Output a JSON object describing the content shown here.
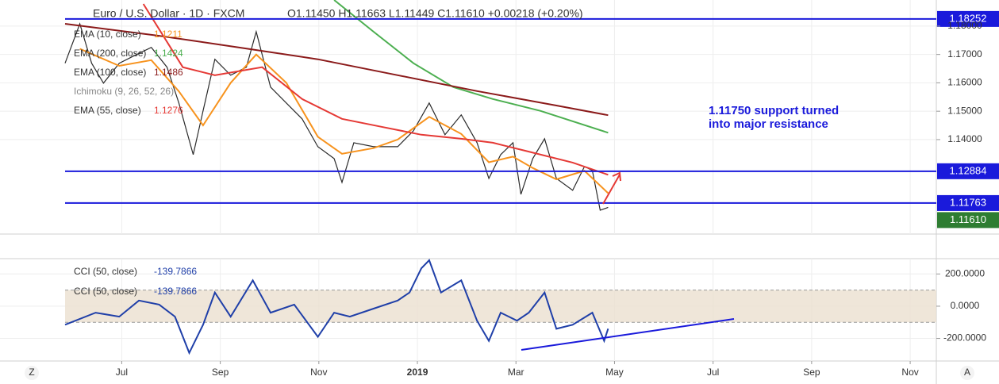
{
  "chart_data": [
    {
      "type": "line",
      "title": "Euro / U.S. Dollar · 1D · FXCM",
      "ohlc": "O1.11450  H1.11663  L1.11449  C1.11610  +0.00218 (+0.20%)",
      "xlim": [
        -1.47,
        17.53
      ],
      "ylim": [
        1.1067,
        1.1892
      ],
      "yticks": [
        {
          "value": 1.14,
          "label": "1.14000"
        },
        {
          "value": 1.15,
          "label": "1.15000"
        },
        {
          "value": 1.16,
          "label": "1.16000"
        },
        {
          "value": 1.17,
          "label": "1.17000"
        },
        {
          "value": 1.18,
          "label": "1.18000"
        }
      ],
      "grid": true,
      "series": [
        {
          "color": "#2b2b2b",
          "x": [
            -0.15,
            0.15,
            0.39,
            0.63,
            0.95,
            1.27,
            1.6,
            1.92,
            2.16,
            2.45,
            2.65,
            2.89,
            3.21,
            3.53,
            3.73,
            4.02,
            4.34,
            4.66,
            4.98,
            5.31,
            5.47,
            5.71,
            6.11,
            6.6,
            6.92,
            7.24,
            7.56,
            7.89,
            8.21,
            8.45,
            8.69,
            8.94,
            9.1,
            9.34,
            9.58,
            9.82,
            10.15,
            10.39,
            10.55,
            10.71,
            10.87
          ],
          "values": [
            1.1669,
            1.1808,
            1.1669,
            1.1599,
            1.1669,
            1.1697,
            1.1725,
            1.1655,
            1.1529,
            1.1347,
            1.1501,
            1.1683,
            1.1627,
            1.1655,
            1.178,
            1.1585,
            1.1529,
            1.1473,
            1.1375,
            1.1333,
            1.1249,
            1.1389,
            1.1375,
            1.1375,
            1.1431,
            1.1529,
            1.1417,
            1.1487,
            1.1389,
            1.1263,
            1.1347,
            1.1389,
            1.1207,
            1.1333,
            1.1403,
            1.1263,
            1.1221,
            1.1305,
            1.1291,
            1.1151,
            1.1161
          ]
        },
        {
          "name": "EMA (10, close)",
          "color": "#f7931e",
          "last": 1.1211,
          "x": [
            0.15,
            0.95,
            1.6,
            2.16,
            2.65,
            3.21,
            3.73,
            4.34,
            4.98,
            5.47,
            6.11,
            6.6,
            7.24,
            7.89,
            8.45,
            8.94,
            9.34,
            9.82,
            10.39,
            10.87
          ],
          "values": [
            1.172,
            1.166,
            1.168,
            1.157,
            1.145,
            1.16,
            1.17,
            1.16,
            1.141,
            1.135,
            1.137,
            1.14,
            1.148,
            1.142,
            1.132,
            1.134,
            1.13,
            1.126,
            1.129,
            1.1211
          ]
        },
        {
          "name": "EMA (200, close)",
          "color": "#4caf50",
          "last": 1.1424,
          "x": [
            5.31,
            6.11,
            6.92,
            7.73,
            8.53,
            9.5,
            10.87
          ],
          "values": [
            1.1892,
            1.178,
            1.1669,
            1.1585,
            1.1543,
            1.1501,
            1.1424
          ]
        },
        {
          "name": "EMA (100, close)",
          "color": "#8b1a1a",
          "last": 1.1486,
          "x": [
            -0.15,
            1.76,
            3.37,
            4.98,
            6.6,
            8.21,
            9.82,
            10.87
          ],
          "values": [
            1.1808,
            1.1766,
            1.1725,
            1.1683,
            1.1627,
            1.1571,
            1.152,
            1.1486
          ]
        },
        {
          "name": "EMA (55, close)",
          "color": "#e53935",
          "last": 1.1276,
          "x": [
            1.44,
            2.24,
            2.89,
            3.85,
            4.66,
            5.47,
            6.27,
            7.08,
            7.89,
            8.53,
            9.18,
            10.15,
            10.87
          ],
          "values": [
            1.1878,
            1.1655,
            1.1627,
            1.1655,
            1.1543,
            1.1473,
            1.1445,
            1.1417,
            1.1403,
            1.1389,
            1.1361,
            1.1319,
            1.1276
          ]
        }
      ],
      "indicator": "Ichimoku (9, 26, 52, 26)",
      "levels": [
        {
          "value": 1.18252
        },
        {
          "value": 1.12884
        },
        {
          "value": 1.11763
        }
      ],
      "level_color": "#1a1adb",
      "last_price": {
        "value": 1.1161,
        "label": "1.11610"
      },
      "last_price_color": "#2e7d32",
      "annotation": [
        "1.11750 support turned",
        "into major resistance"
      ]
    },
    {
      "type": "line",
      "xlim": [
        -1.47,
        17.53
      ],
      "xticks": [
        {
          "value": 1,
          "label": "Jul"
        },
        {
          "value": 3,
          "label": "Sep"
        },
        {
          "value": 5,
          "label": "Nov"
        },
        {
          "value": 7,
          "label": "2019"
        },
        {
          "value": 9,
          "label": "Mar"
        },
        {
          "value": 11,
          "label": "May"
        },
        {
          "value": 13,
          "label": "Jul"
        },
        {
          "value": 15,
          "label": "Sep"
        },
        {
          "value": 17,
          "label": "Nov"
        }
      ],
      "ylim": [
        -340,
        295
      ],
      "yticks": [
        {
          "value": -200,
          "label": "-200.0000"
        },
        {
          "value": 0,
          "label": "0.0000"
        },
        {
          "value": 200,
          "label": "200.0000"
        }
      ],
      "grid": true,
      "band": [
        -100,
        100
      ],
      "band_color": "#ebe0cf",
      "series": [
        {
          "name": "CCI (50, close)",
          "color": "#1f3fa8",
          "last": -139.7866,
          "x": [
            -0.15,
            0.47,
            0.95,
            1.35,
            1.76,
            2.08,
            2.37,
            2.65,
            2.89,
            3.21,
            3.66,
            4.02,
            4.5,
            4.98,
            5.31,
            5.63,
            6.11,
            6.6,
            6.84,
            7.08,
            7.24,
            7.48,
            7.89,
            8.21,
            8.45,
            8.69,
            9.02,
            9.26,
            9.58,
            9.82,
            10.15,
            10.55,
            10.79,
            10.87
          ],
          "values": [
            -115,
            -40,
            -65,
            35,
            10,
            -65,
            -290,
            -115,
            85,
            -65,
            160,
            -40,
            10,
            -190,
            -40,
            -65,
            -15,
            35,
            85,
            235,
            285,
            85,
            160,
            -90,
            -215,
            -40,
            -90,
            -40,
            85,
            -140,
            -115,
            -40,
            -215,
            -139.7866
          ]
        }
      ]
    }
  ],
  "ui": {
    "left_icon": "Z",
    "right_icon": "A"
  }
}
